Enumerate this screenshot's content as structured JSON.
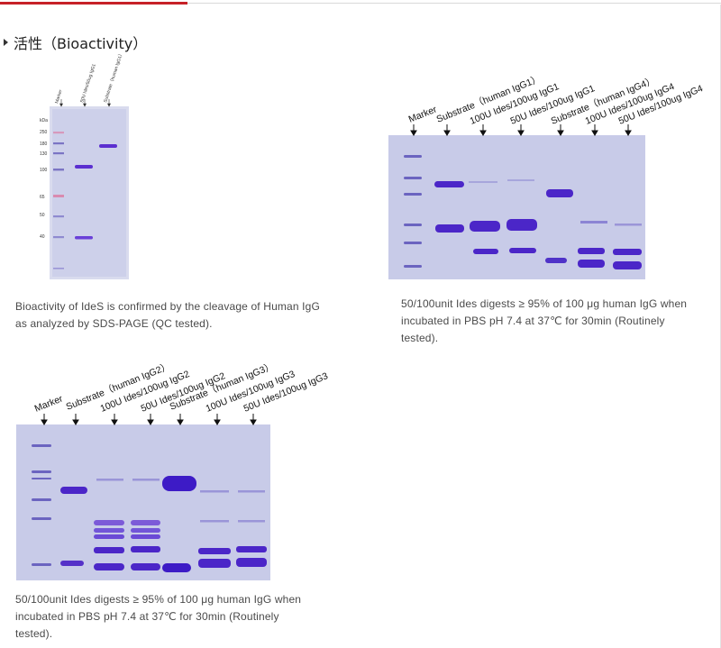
{
  "heading": {
    "marker_icon": "triangle-bullet-icon",
    "title": "活性（Bioactivity）"
  },
  "gel1": {
    "lane_labels": [
      "Marker",
      "50U Ides/50ug IgG1",
      "Substrate（human IgG1）"
    ],
    "unit_label": "kDa",
    "marker_weights": [
      "250",
      "180",
      "130",
      "100",
      "65",
      "50",
      "40"
    ],
    "caption": "Bioactivity of IdeS is confirmed by the cleavage of Human IgG as analyzed by SDS-PAGE (QC tested).",
    "caption_lines": [
      "Bioactivity of IdeS is confirmed by the cleavage of Human IgG",
      "as analyzed by SDS-PAGE (QC tested)."
    ]
  },
  "gel2": {
    "lane_labels": [
      "Marker",
      "Substrate（human IgG1）",
      "100U Ides/100ug IgG1",
      "50U Ides/100ug IgG1",
      "Substrate（human IgG4）",
      "100U Ides/100ug IgG4",
      "50U Ides/100ug IgG4"
    ],
    "caption_lines": [
      "50/100unit Ides digests ≥ 95% of 100 μg human IgG when",
      "incubated in PBS pH 7.4 at 37℃ for 30min (Routinely",
      "tested)."
    ]
  },
  "gel3": {
    "lane_labels": [
      "Marker",
      "Substrate（human IgG2）",
      "100U Ides/100ug IgG2",
      "50U Ides/100ug IgG2",
      "Substrate（human IgG3）",
      "100U Ides/100ug IgG3",
      "50U Ides/100ug IgG3"
    ],
    "caption_lines": [
      "50/100unit Ides digests ≥ 95% of 100 μg human IgG when",
      "incubated in PBS pH 7.4 at 37℃ for 30min (Routinely",
      "tested)."
    ]
  },
  "colors": {
    "accent_red": "#c62127",
    "gel_background": "#c8cbe8",
    "band": "#5b2fd0",
    "marker_band": "#7b74c4",
    "marker_pink": "#d98bb0"
  }
}
